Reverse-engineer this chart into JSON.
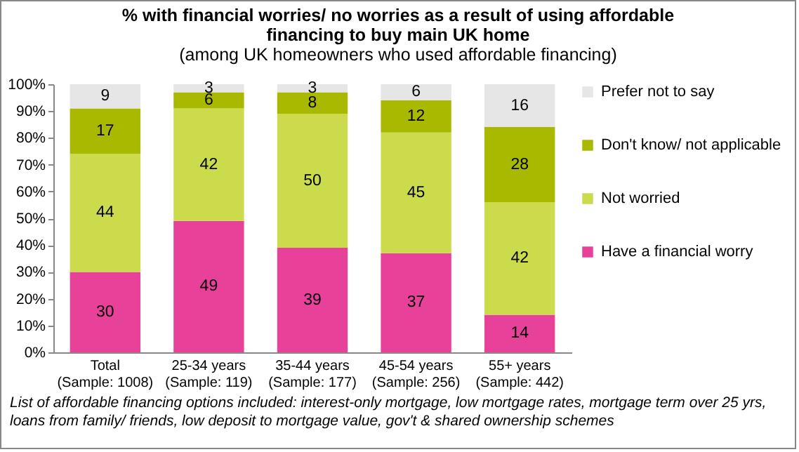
{
  "chart_data": {
    "type": "bar",
    "stacked": true,
    "title": "% with financial worries/ no worries as a result of using affordable financing to buy main UK home",
    "subtitle": "(among UK homeowners who used affordable financing)",
    "categories": [
      "Total\n(Sample: 1008)",
      "25-34 years\n(Sample: 119)",
      "35-44 years\n(Sample: 177)",
      "45-54 years\n(Sample: 256)",
      "55+ years\n(Sample: 442)"
    ],
    "series": [
      {
        "name": "Have a financial worry",
        "color": "#e8419a",
        "values": [
          30,
          49,
          39,
          37,
          14
        ]
      },
      {
        "name": "Not worried",
        "color": "#ccdb4c",
        "values": [
          44,
          42,
          50,
          45,
          42
        ]
      },
      {
        "name": "Don't know/ not applicable",
        "color": "#a9b900",
        "values": [
          17,
          6,
          8,
          12,
          28
        ]
      },
      {
        "name": "Prefer not to say",
        "color": "#e6e6e6",
        "values": [
          9,
          3,
          3,
          6,
          16
        ]
      }
    ],
    "ylim": [
      0,
      100
    ],
    "yticks": [
      {
        "value": 0,
        "label": "0%"
      },
      {
        "value": 10,
        "label": "10%"
      },
      {
        "value": 20,
        "label": "20%"
      },
      {
        "value": 30,
        "label": "30%"
      },
      {
        "value": 40,
        "label": "40%"
      },
      {
        "value": 50,
        "label": "50%"
      },
      {
        "value": 60,
        "label": "60%"
      },
      {
        "value": 70,
        "label": "70%"
      },
      {
        "value": 80,
        "label": "80%"
      },
      {
        "value": 90,
        "label": "90%"
      },
      {
        "value": 100,
        "label": "100%"
      }
    ],
    "data_labels": true,
    "legend": "right",
    "annotations": [
      "List of affordable financing options included: interest-only mortgage, low mortgage rates, mortgage term over 25 yrs, loans from family/ friends, low deposit to mortgage value, gov't & shared ownership schemes"
    ]
  }
}
